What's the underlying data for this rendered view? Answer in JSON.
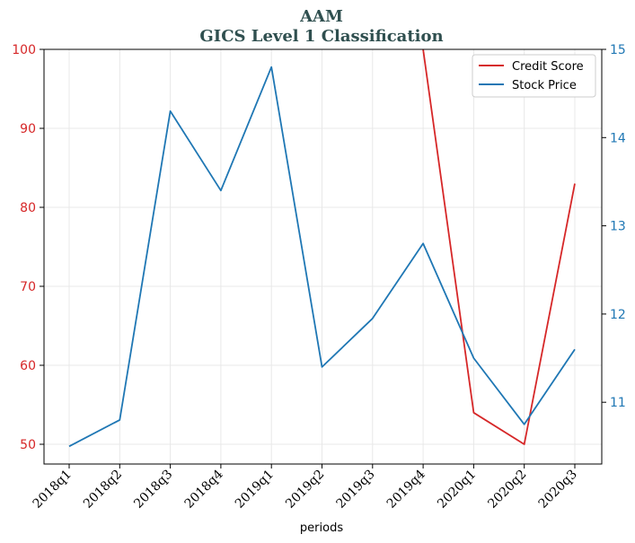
{
  "chart_data": {
    "type": "line",
    "title_line1": "AAM",
    "title_line2": "GICS Level 1 Classification",
    "xlabel": "periods",
    "categories": [
      "2018q1",
      "2018q2",
      "2018q3",
      "2018q4",
      "2019q1",
      "2019q2",
      "2019q3",
      "2019q4",
      "2020q1",
      "2020q2",
      "2020q3"
    ],
    "y_left": {
      "lim": [
        47.5,
        100
      ],
      "ticks": [
        50,
        60,
        70,
        80,
        90,
        100
      ],
      "color": "#d62728"
    },
    "y_right": {
      "lim": [
        10.3,
        15
      ],
      "ticks": [
        11,
        12,
        13,
        14,
        15
      ],
      "color": "#1f77b4"
    },
    "grid": true,
    "legend_position": "top-right",
    "series": [
      {
        "name": "Credit Score",
        "axis": "left",
        "color": "#d62728",
        "values": [
          null,
          null,
          null,
          null,
          null,
          null,
          null,
          100,
          54,
          50,
          83
        ]
      },
      {
        "name": "Stock Price",
        "axis": "right",
        "color": "#1f77b4",
        "values": [
          10.5,
          10.8,
          14.3,
          13.4,
          14.8,
          11.4,
          11.95,
          12.8,
          11.5,
          10.75,
          11.6
        ]
      }
    ]
  }
}
